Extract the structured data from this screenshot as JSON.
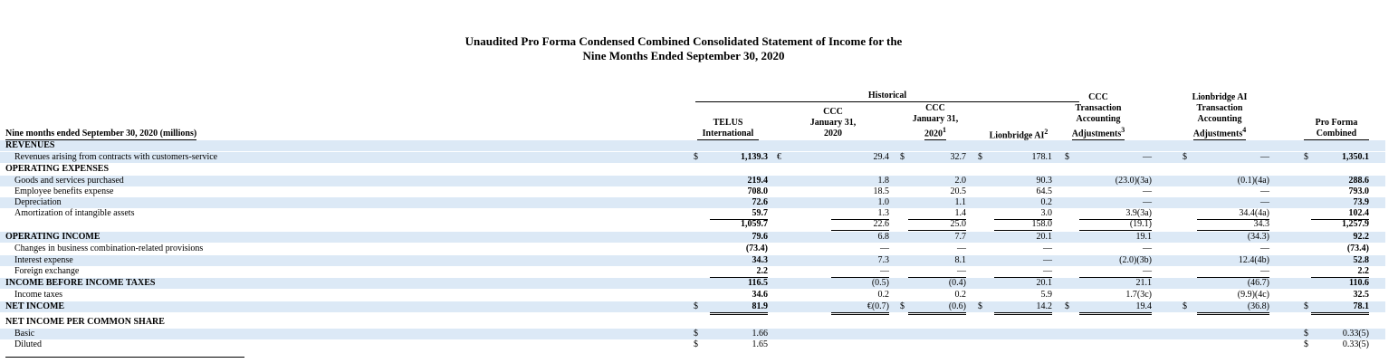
{
  "title": {
    "line1": "Unaudited Pro Forma Condensed Combined Consolidated Statement of Income for the",
    "line2": "Nine Months Ended September 30, 2020"
  },
  "header": {
    "period_label": "Nine months ended September 30, 2020 (millions)",
    "historical": "Historical",
    "columns": {
      "telus": [
        "TELUS",
        "International"
      ],
      "ccc_eur": [
        "CCC",
        "January 31,",
        "2020"
      ],
      "ccc_usd": [
        "CCC",
        "January 31,",
        "2020",
        "1"
      ],
      "lionbridge": [
        "Lionbridge AI",
        "2"
      ],
      "ccc_adj": [
        "CCC",
        "Transaction",
        "Accounting",
        "Adjustments",
        "3"
      ],
      "lb_adj": [
        "Lionbridge AI",
        "Transaction",
        "Accounting",
        "Adjustments",
        "4"
      ],
      "proforma": [
        "Pro Forma",
        "Combined"
      ]
    }
  },
  "rows": [
    {
      "label": "REVENUES",
      "style": "section"
    },
    {
      "label": "Revenues arising from contracts with customers-service",
      "style": "indent",
      "cur": {
        "telus": "$",
        "ccc_eur": "€",
        "ccc_usd": "$",
        "lionbridge": "$",
        "ccc_adj": "$",
        "lb_adj": "$",
        "proforma": "$"
      },
      "v": {
        "telus": "1,139.3",
        "ccc_eur": "29.4",
        "ccc_usd": "32.7",
        "lionbridge": "178.1",
        "ccc_adj": "—",
        "lb_adj": "—",
        "proforma": "1,350.1"
      }
    },
    {
      "label": "OPERATING EXPENSES",
      "style": "section"
    },
    {
      "label": "Goods and services purchased",
      "style": "indent",
      "v": {
        "telus": "219.4",
        "ccc_eur": "1.8",
        "ccc_usd": "2.0",
        "lionbridge": "90.3",
        "ccc_adj": "(23.0)(3a)",
        "lb_adj": "(0.1)(4a)",
        "proforma": "288.6"
      }
    },
    {
      "label": "Employee benefits expense",
      "style": "indent",
      "v": {
        "telus": "708.0",
        "ccc_eur": "18.5",
        "ccc_usd": "20.5",
        "lionbridge": "64.5",
        "ccc_adj": "—",
        "lb_adj": "—",
        "proforma": "793.0"
      }
    },
    {
      "label": "Depreciation",
      "style": "indent",
      "v": {
        "telus": "72.6",
        "ccc_eur": "1.0",
        "ccc_usd": "1.1",
        "lionbridge": "0.2",
        "ccc_adj": "—",
        "lb_adj": "—",
        "proforma": "73.9"
      }
    },
    {
      "label": "Amortization of intangible assets",
      "style": "indent",
      "v": {
        "telus": "59.7",
        "ccc_eur": "1.3",
        "ccc_usd": "1.4",
        "lionbridge": "3.0",
        "ccc_adj": "3.9(3a)",
        "lb_adj": "34.4(4a)",
        "proforma": "102.4"
      }
    },
    {
      "label": "",
      "style": "indent",
      "v": {
        "telus": "1,059.7",
        "ccc_eur": "22.6",
        "ccc_usd": "25.0",
        "lionbridge": "158.0",
        "ccc_adj": "(19.1)",
        "lb_adj": "34.3",
        "proforma": "1,257.9"
      }
    },
    {
      "label": "OPERATING INCOME",
      "style": "section",
      "v": {
        "telus": "79.6",
        "ccc_eur": "6.8",
        "ccc_usd": "7.7",
        "lionbridge": "20.1",
        "ccc_adj": "19.1",
        "lb_adj": "(34.3)",
        "proforma": "92.2"
      }
    },
    {
      "label": "Changes in business combination-related provisions",
      "style": "indent",
      "v": {
        "telus": "(73.4)",
        "ccc_eur": "—",
        "ccc_usd": "—",
        "lionbridge": "—",
        "ccc_adj": "—",
        "lb_adj": "—",
        "proforma": "(73.4)"
      }
    },
    {
      "label": "Interest expense",
      "style": "indent",
      "v": {
        "telus": "34.3",
        "ccc_eur": "7.3",
        "ccc_usd": "8.1",
        "lionbridge": "—",
        "ccc_adj": "(2.0)(3b)",
        "lb_adj": "12.4(4b)",
        "proforma": "52.8"
      }
    },
    {
      "label": "Foreign exchange",
      "style": "indent",
      "v": {
        "telus": "2.2",
        "ccc_eur": "—",
        "ccc_usd": "—",
        "lionbridge": "—",
        "ccc_adj": "—",
        "lb_adj": "—",
        "proforma": "2.2"
      }
    },
    {
      "label": "INCOME BEFORE INCOME TAXES",
      "style": "section",
      "v": {
        "telus": "116.5",
        "ccc_eur": "(0.5)",
        "ccc_usd": "(0.4)",
        "lionbridge": "20.1",
        "ccc_adj": "21.1",
        "lb_adj": "(46.7)",
        "proforma": "110.6"
      }
    },
    {
      "label": "Income taxes",
      "style": "indent",
      "v": {
        "telus": "34.6",
        "ccc_eur": "0.2",
        "ccc_usd": "0.2",
        "lionbridge": "5.9",
        "ccc_adj": "1.7(3c)",
        "lb_adj": "(9.9)(4c)",
        "proforma": "32.5"
      }
    },
    {
      "label": "NET INCOME",
      "style": "section",
      "cur": {
        "telus": "$",
        "ccc_usd": "$",
        "lionbridge": "$",
        "ccc_adj": "$",
        "lb_adj": "$",
        "proforma": "$"
      },
      "v": {
        "telus": "81.9",
        "ccc_eur": "€(0.7)",
        "ccc_usd": "(0.6)",
        "lionbridge": "14.2",
        "ccc_adj": "19.4",
        "lb_adj": "(36.8)",
        "proforma": "78.1"
      }
    },
    {
      "label": "NET INCOME PER COMMON SHARE",
      "style": "section"
    },
    {
      "label": "Basic",
      "style": "indent",
      "cur": {
        "telus": "$",
        "proforma": "$"
      },
      "v": {
        "telus": "1.66",
        "proforma": "0.33(5)"
      }
    },
    {
      "label": "Diluted",
      "style": "indent",
      "cur": {
        "telus": "$",
        "proforma": "$"
      },
      "v": {
        "telus": "1.65",
        "proforma": "0.33(5)"
      }
    }
  ]
}
